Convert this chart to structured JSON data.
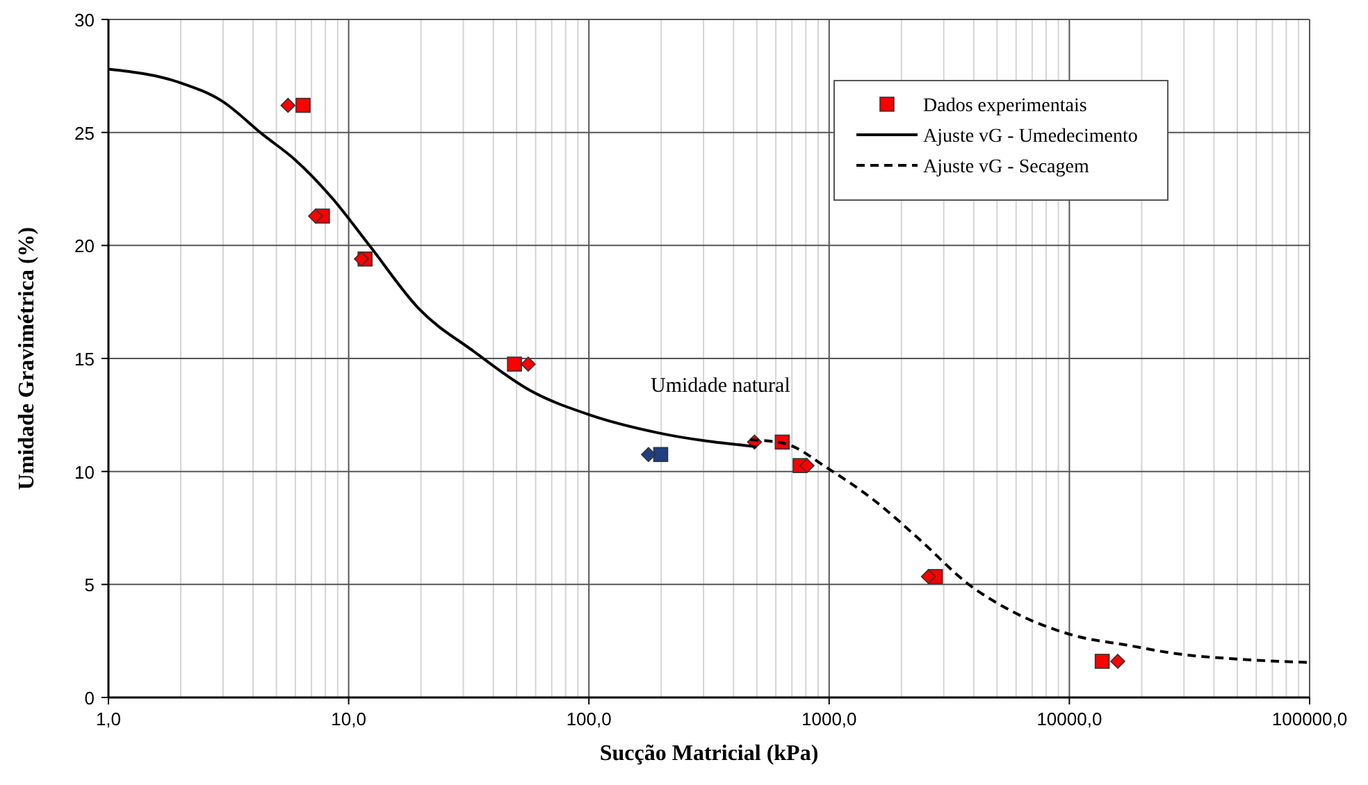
{
  "chart_data": {
    "type": "scatter",
    "xlabel": "Sucção Matricial (kPa)",
    "ylabel": "Umidade Gravimétrica (%)",
    "log": "x",
    "grid": true,
    "legend": "top right",
    "xlim": [
      1,
      100000
    ],
    "xticks": [
      {
        "value": 1,
        "label": "1,0"
      },
      {
        "value": 10,
        "label": "10,0"
      },
      {
        "value": 100,
        "label": "100,0"
      },
      {
        "value": 1000,
        "label": "1000,0"
      },
      {
        "value": 10000,
        "label": "10000,0"
      },
      {
        "value": 100000,
        "label": "100000,0"
      }
    ],
    "ylim": [
      0,
      30
    ],
    "yticks": [
      0,
      5,
      10,
      15,
      20,
      25,
      30
    ],
    "annotations": [
      "Umidade natural"
    ],
    "series": [
      {
        "name": "Dados experimentais",
        "marker": "square",
        "color": "#ff0000",
        "x": [
          6.46,
          7.78,
          11.7,
          49,
          638,
          757,
          2770,
          13700
        ],
        "values": [
          26.2,
          21.3,
          19.4,
          14.75,
          11.3,
          10.26,
          5.35,
          1.6
        ]
      },
      {
        "marker": "diamond",
        "color": "#ff0000",
        "x": [
          5.59,
          7.28,
          11.3,
          55.9,
          489,
          809,
          2590,
          15900
        ],
        "values": [
          26.2,
          21.3,
          19.4,
          14.75,
          11.3,
          10.26,
          5.35,
          1.6
        ]
      },
      {
        "marker": "square",
        "color": "#1f3f7f",
        "x": [
          199
        ],
        "values": [
          10.75
        ]
      },
      {
        "marker": "diamond",
        "color": "#1f3f7f",
        "x": [
          177
        ],
        "values": [
          10.75
        ]
      },
      {
        "name": "Ajuste vG - Umedecimento",
        "type": "line",
        "marker": "none",
        "line_style": "solid",
        "color": "#000000",
        "x": [
          1,
          1.99,
          2.96,
          4.4,
          5.97,
          8.53,
          12.2,
          19.6,
          33.3,
          56.6,
          101,
          196,
          496
        ],
        "values": [
          27.8,
          27.2,
          26.4,
          24.9,
          23.8,
          22.1,
          20,
          17.2,
          15.3,
          13.6,
          12.5,
          11.7,
          11.1
        ]
      },
      {
        "name": "Ajuste vG - Secagem",
        "type": "line",
        "marker": "none",
        "line_style": "dashed",
        "color": "#000000",
        "x": [
          470,
          646,
          1000,
          1550,
          2430,
          3760,
          5810,
          10400,
          17700,
          27300,
          50000,
          100000
        ],
        "values": [
          11.4,
          11.25,
          10.1,
          8.7,
          6.9,
          5.05,
          3.8,
          2.75,
          2.3,
          1.95,
          1.7,
          1.55
        ]
      }
    ]
  }
}
